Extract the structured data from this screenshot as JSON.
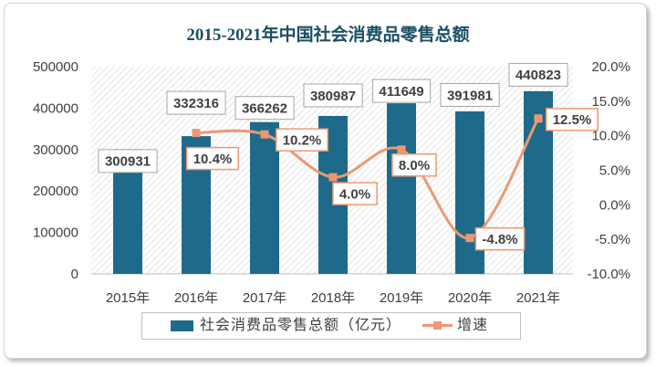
{
  "chart_data": {
    "type": "bar",
    "title": "2015-2021年中国社会消费品零售总额",
    "title_color": "#1c4f64",
    "categories": [
      "2015年",
      "2016年",
      "2017年",
      "2018年",
      "2019年",
      "2020年",
      "2021年"
    ],
    "series": [
      {
        "name": "社会消费品零售总额（亿元）",
        "type": "bar",
        "secondary_axis": false,
        "color": "#1e6a8a",
        "values": [
          300931,
          332316,
          366262,
          380987,
          411649,
          391981,
          440823
        ],
        "data_labels": [
          "300931",
          "332316",
          "366262",
          "380987",
          "411649",
          "391981",
          "440823"
        ]
      },
      {
        "name": "增速",
        "type": "line",
        "secondary_axis": true,
        "smooth": true,
        "color": "#ed9873",
        "values": [
          null,
          10.4,
          10.2,
          4.0,
          8.0,
          -4.8,
          12.5
        ],
        "data_labels": [
          null,
          "10.4%",
          "10.2%",
          "4.0%",
          "8.0%",
          "-4.8%",
          "12.5%"
        ]
      }
    ],
    "y_left": {
      "range": [
        0,
        500000
      ],
      "tick_labels": [
        "0",
        "100000",
        "200000",
        "300000",
        "400000",
        "500000"
      ]
    },
    "y_right": {
      "range": [
        -10,
        20
      ],
      "tick_labels": [
        "-10.0%",
        "-5.0%",
        "0.0%",
        "5.0%",
        "10.0%",
        "15.0%",
        "20.0%"
      ]
    },
    "grid": false,
    "legend": "bottom"
  }
}
